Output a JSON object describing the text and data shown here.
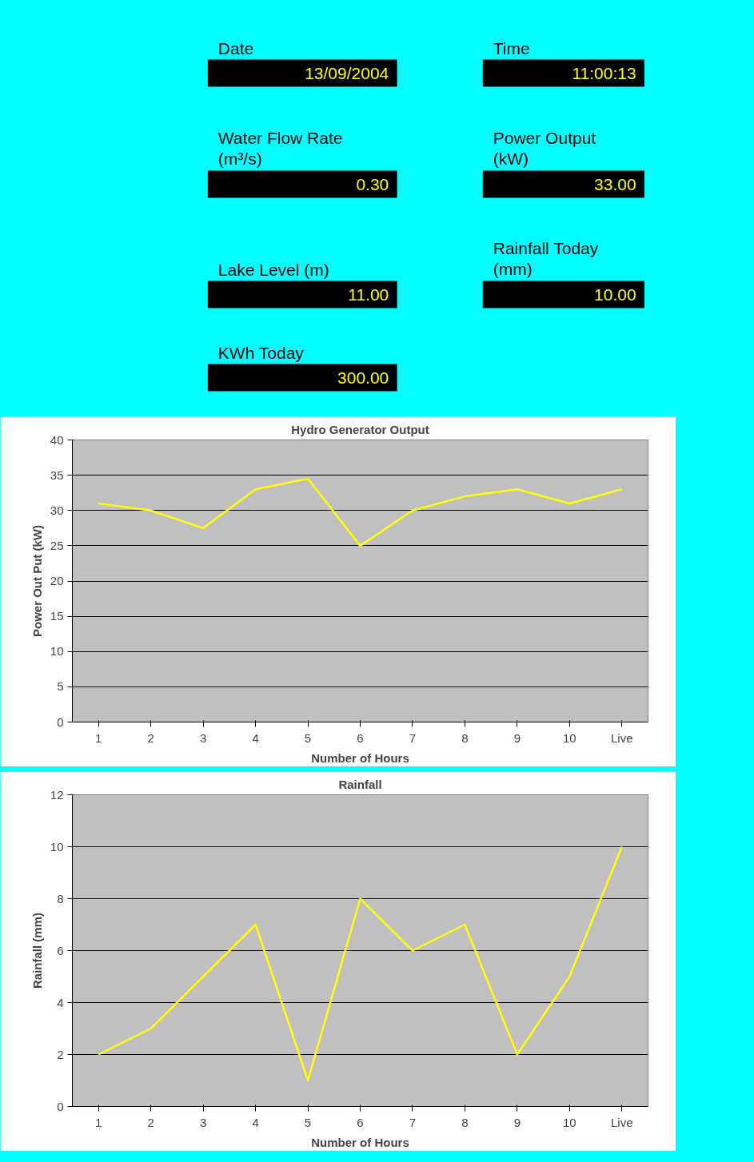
{
  "chart_data": [
    {
      "type": "other",
      "annotations": [
        "Date",
        "13/09/2004",
        "Time",
        "11:00:13",
        "Water Flow Rate (m³/s)",
        "0.30",
        "Power Output (kW)",
        "33.00",
        "Lake Level (m)",
        "11.00",
        "Rainfall Today (mm)",
        "10.00",
        "KWh Today",
        "300.00"
      ]
    },
    {
      "type": "line",
      "title": "Hydro Generator Output",
      "xlabel": "Number of Hours",
      "ylabel": "Power Out Put (kW)",
      "categories": [
        "1",
        "2",
        "3",
        "4",
        "5",
        "6",
        "7",
        "8",
        "9",
        "10",
        "Live"
      ],
      "series": [
        {
          "color": "#ffff00",
          "values": [
            31,
            30,
            27.5,
            33,
            34.5,
            25,
            30,
            32,
            33,
            31,
            33
          ]
        }
      ],
      "ylim": [
        0,
        40
      ],
      "yticks": [
        0,
        5,
        10,
        15,
        20,
        25,
        30,
        35,
        40
      ],
      "grid": "y"
    },
    {
      "type": "line",
      "title": "Rainfall",
      "xlabel": "Number of Hours",
      "ylabel": "Rainfall (mm)",
      "categories": [
        "1",
        "2",
        "3",
        "4",
        "5",
        "6",
        "7",
        "8",
        "9",
        "10",
        "Live"
      ],
      "series": [
        {
          "color": "#ffff00",
          "values": [
            2,
            3,
            5,
            7,
            1,
            8,
            6,
            7,
            2,
            5,
            10
          ]
        }
      ],
      "ylim": [
        0,
        12
      ],
      "yticks": [
        0,
        2,
        4,
        6,
        8,
        10,
        12
      ],
      "grid": "y"
    }
  ]
}
